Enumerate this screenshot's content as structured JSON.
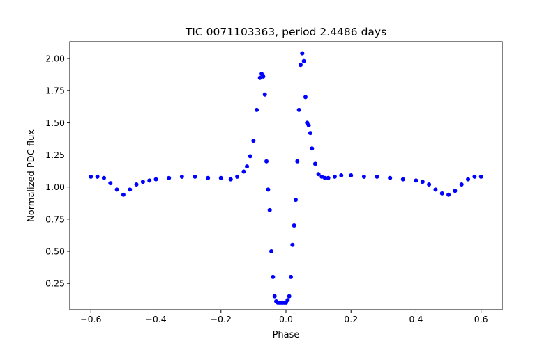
{
  "chart_data": {
    "type": "scatter",
    "title": "TIC 0071103363, period 2.4486 days",
    "xlabel": "Phase",
    "ylabel": "Normalized PDC flux",
    "xlim": [
      -0.665,
      0.665
    ],
    "ylim": [
      0.045,
      2.13
    ],
    "xticks": [
      -0.6,
      -0.4,
      -0.2,
      0.0,
      0.2,
      0.4,
      0.6
    ],
    "xtick_labels": [
      "−0.6",
      "−0.4",
      "−0.2",
      "0.0",
      "0.2",
      "0.4",
      "0.6"
    ],
    "yticks": [
      0.25,
      0.5,
      0.75,
      1.0,
      1.25,
      1.5,
      1.75,
      2.0
    ],
    "ytick_labels": [
      "0.25",
      "0.50",
      "0.75",
      "1.00",
      "1.25",
      "1.50",
      "1.75",
      "2.00"
    ],
    "marker_color": "#0000ff",
    "grid": false,
    "series": [
      {
        "x": [
          -0.6,
          -0.58,
          -0.56,
          -0.54,
          -0.52,
          -0.5,
          -0.48,
          -0.46,
          -0.44,
          -0.42,
          -0.4,
          -0.36,
          -0.32,
          -0.28,
          -0.24,
          -0.2,
          -0.17,
          -0.15,
          -0.13,
          -0.12,
          -0.11,
          -0.1,
          -0.09,
          -0.08,
          -0.075,
          -0.07,
          -0.065,
          -0.06,
          -0.055,
          -0.05,
          -0.045,
          -0.04,
          -0.035,
          -0.03,
          -0.025,
          -0.02,
          -0.015,
          -0.01,
          -0.005,
          0.0,
          0.005,
          0.01,
          0.015,
          0.02,
          0.025,
          0.03,
          0.035,
          0.04,
          0.045,
          0.05,
          0.055,
          0.06,
          0.065,
          0.07,
          0.075,
          0.08,
          0.09,
          0.1,
          0.11,
          0.12,
          0.13,
          0.15,
          0.17,
          0.2,
          0.24,
          0.28,
          0.32,
          0.36,
          0.4,
          0.42,
          0.44,
          0.46,
          0.48,
          0.5,
          0.52,
          0.54,
          0.56,
          0.58,
          0.6
        ],
        "y": [
          1.08,
          1.08,
          1.07,
          1.03,
          0.98,
          0.94,
          0.98,
          1.02,
          1.04,
          1.05,
          1.06,
          1.07,
          1.08,
          1.08,
          1.07,
          1.07,
          1.06,
          1.08,
          1.12,
          1.16,
          1.24,
          1.36,
          1.6,
          1.85,
          1.88,
          1.86,
          1.72,
          1.2,
          0.98,
          0.82,
          0.5,
          0.3,
          0.15,
          0.11,
          0.1,
          0.1,
          0.1,
          0.1,
          0.1,
          0.1,
          0.12,
          0.15,
          0.3,
          0.55,
          0.7,
          0.9,
          1.2,
          1.6,
          1.95,
          2.04,
          1.98,
          1.7,
          1.5,
          1.48,
          1.42,
          1.3,
          1.18,
          1.1,
          1.08,
          1.07,
          1.07,
          1.08,
          1.09,
          1.09,
          1.08,
          1.08,
          1.07,
          1.06,
          1.05,
          1.04,
          1.02,
          0.98,
          0.95,
          0.94,
          0.97,
          1.02,
          1.06,
          1.08,
          1.08
        ]
      }
    ]
  }
}
